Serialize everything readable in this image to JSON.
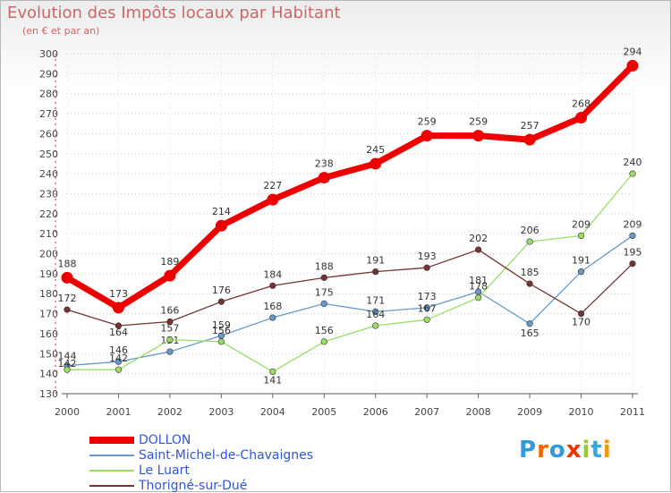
{
  "chart_data": {
    "type": "line",
    "title": "Evolution des Impôts locaux par Habitant",
    "subtitle": "(en € et par an)",
    "xlabel": "",
    "ylabel": "",
    "ylim": [
      130,
      300
    ],
    "yticks": [
      130,
      140,
      150,
      160,
      170,
      180,
      190,
      200,
      210,
      220,
      230,
      240,
      250,
      260,
      270,
      280,
      290,
      300
    ],
    "grid": "horizontal",
    "categories": [
      "2000",
      "2001",
      "2002",
      "2003",
      "2004",
      "2005",
      "2006",
      "2007",
      "2008",
      "2009",
      "2010",
      "2011"
    ],
    "series": [
      {
        "name": "DOLLON",
        "color": "#ee0000",
        "values": [
          188,
          173,
          189,
          214,
          227,
          238,
          245,
          259,
          259,
          257,
          268,
          294
        ]
      },
      {
        "name": "Saint-Michel-de-Chavaignes",
        "color": "#6699cc",
        "values": [
          144,
          146,
          151,
          159,
          168,
          175,
          171,
          173,
          181,
          165,
          191,
          209
        ]
      },
      {
        "name": "Le Luart",
        "color": "#99dd66",
        "values": [
          142,
          142,
          157,
          156,
          141,
          156,
          164,
          167,
          178,
          206,
          209,
          240
        ]
      },
      {
        "name": "Thorigné-sur-Dué",
        "color": "#773333",
        "values": [
          172,
          164,
          166,
          176,
          184,
          188,
          191,
          193,
          202,
          185,
          170,
          195
        ]
      }
    ]
  },
  "brand": {
    "letters": [
      "P",
      "r",
      "o",
      "x",
      "i",
      "t",
      "i"
    ],
    "colors": [
      "#3399dd",
      "#ee6600",
      "#3399dd",
      "#ee3300",
      "#99cc33",
      "#33aadd",
      "#ee9900"
    ]
  }
}
